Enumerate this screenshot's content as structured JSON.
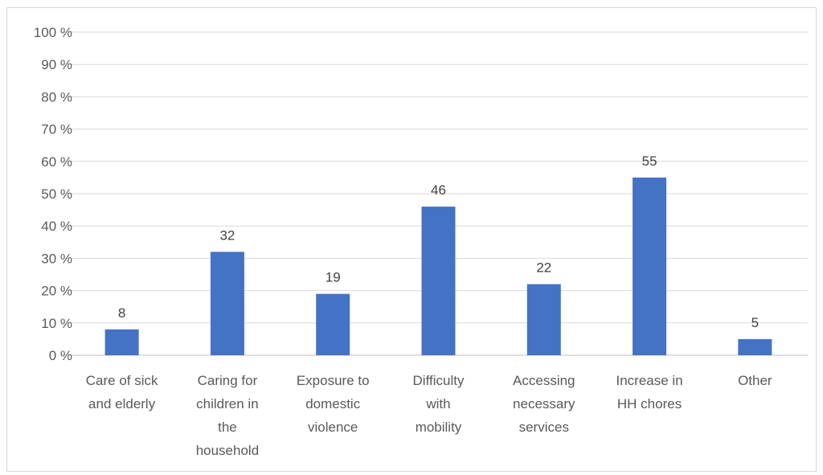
{
  "chart_data": {
    "type": "bar",
    "title": "",
    "xlabel": "",
    "ylabel": "",
    "categories": [
      [
        "Care of sick",
        "and elderly"
      ],
      [
        "Caring for",
        "children in",
        "the",
        "household"
      ],
      [
        "Exposure to",
        "domestic",
        "violence"
      ],
      [
        "Difficulty",
        "with",
        "mobility"
      ],
      [
        "Accessing",
        "necessary",
        "services"
      ],
      [
        "Increase in",
        "HH chores"
      ],
      [
        "Other"
      ]
    ],
    "values": [
      8,
      32,
      19,
      46,
      22,
      55,
      5
    ],
    "data_labels": [
      "8",
      "32",
      "19",
      "46",
      "22",
      "55",
      "5"
    ],
    "ylim": [
      0,
      100
    ],
    "y_ticks": [
      0,
      10,
      20,
      30,
      40,
      50,
      60,
      70,
      80,
      90,
      100
    ],
    "y_tick_labels": [
      "0 %",
      "10 %",
      "20 %",
      "30 %",
      "40 %",
      "50 %",
      "60 %",
      "70 %",
      "80 %",
      "90 %",
      "100 %"
    ],
    "grid": true,
    "legend": "none",
    "colors": {
      "bar": "#4472c4",
      "grid": "#d9d9d9",
      "axis": "#bfbfbf",
      "text": "#595959"
    }
  }
}
